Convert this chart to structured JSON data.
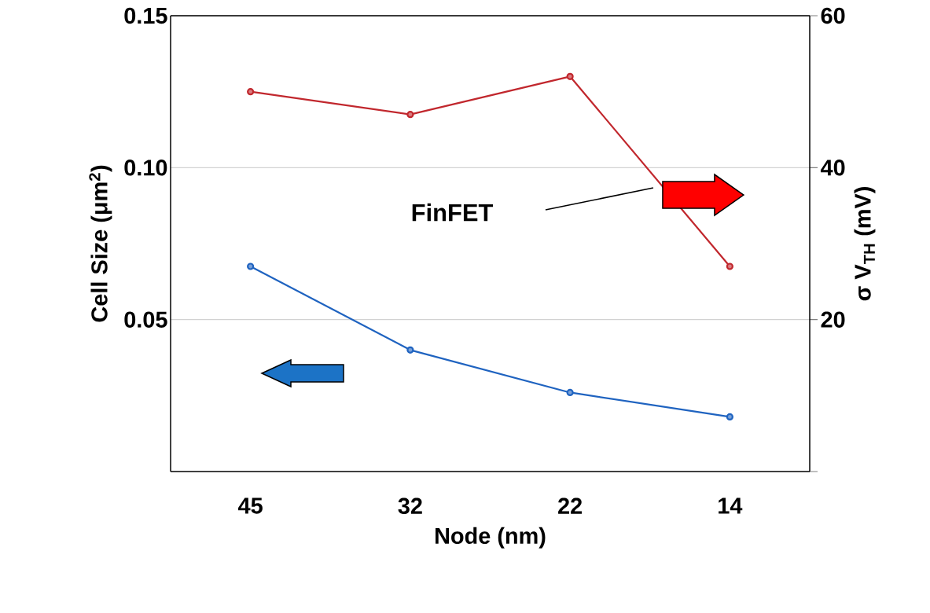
{
  "chart_data": {
    "type": "line",
    "xlabel": "Node (nm)",
    "ylabel": "Cell Size (μm$^{2}$)",
    "y2label": "σ V$_{TH}$ (mV)",
    "categories": [
      "45",
      "32",
      "22",
      "14"
    ],
    "series": [
      {
        "color": "#c1272d",
        "values": [
          50,
          47,
          52,
          27
        ],
        "axis": "y2"
      },
      {
        "color": "#1f63c0",
        "values": [
          0.0675,
          0.04,
          0.026,
          0.018
        ]
      }
    ],
    "ylim": [
      0,
      0.15
    ],
    "yticks": [
      0.05,
      {
        "value": 0.1,
        "label": "0.10"
      },
      0.15
    ],
    "y2lim": [
      0,
      60
    ],
    "y2ticks": [
      {
        "value": 0,
        "label": null
      },
      20,
      40,
      60
    ],
    "grid": "y",
    "marker": "circle",
    "line_style": "solid",
    "annotations": [
      "FinFET"
    ]
  }
}
